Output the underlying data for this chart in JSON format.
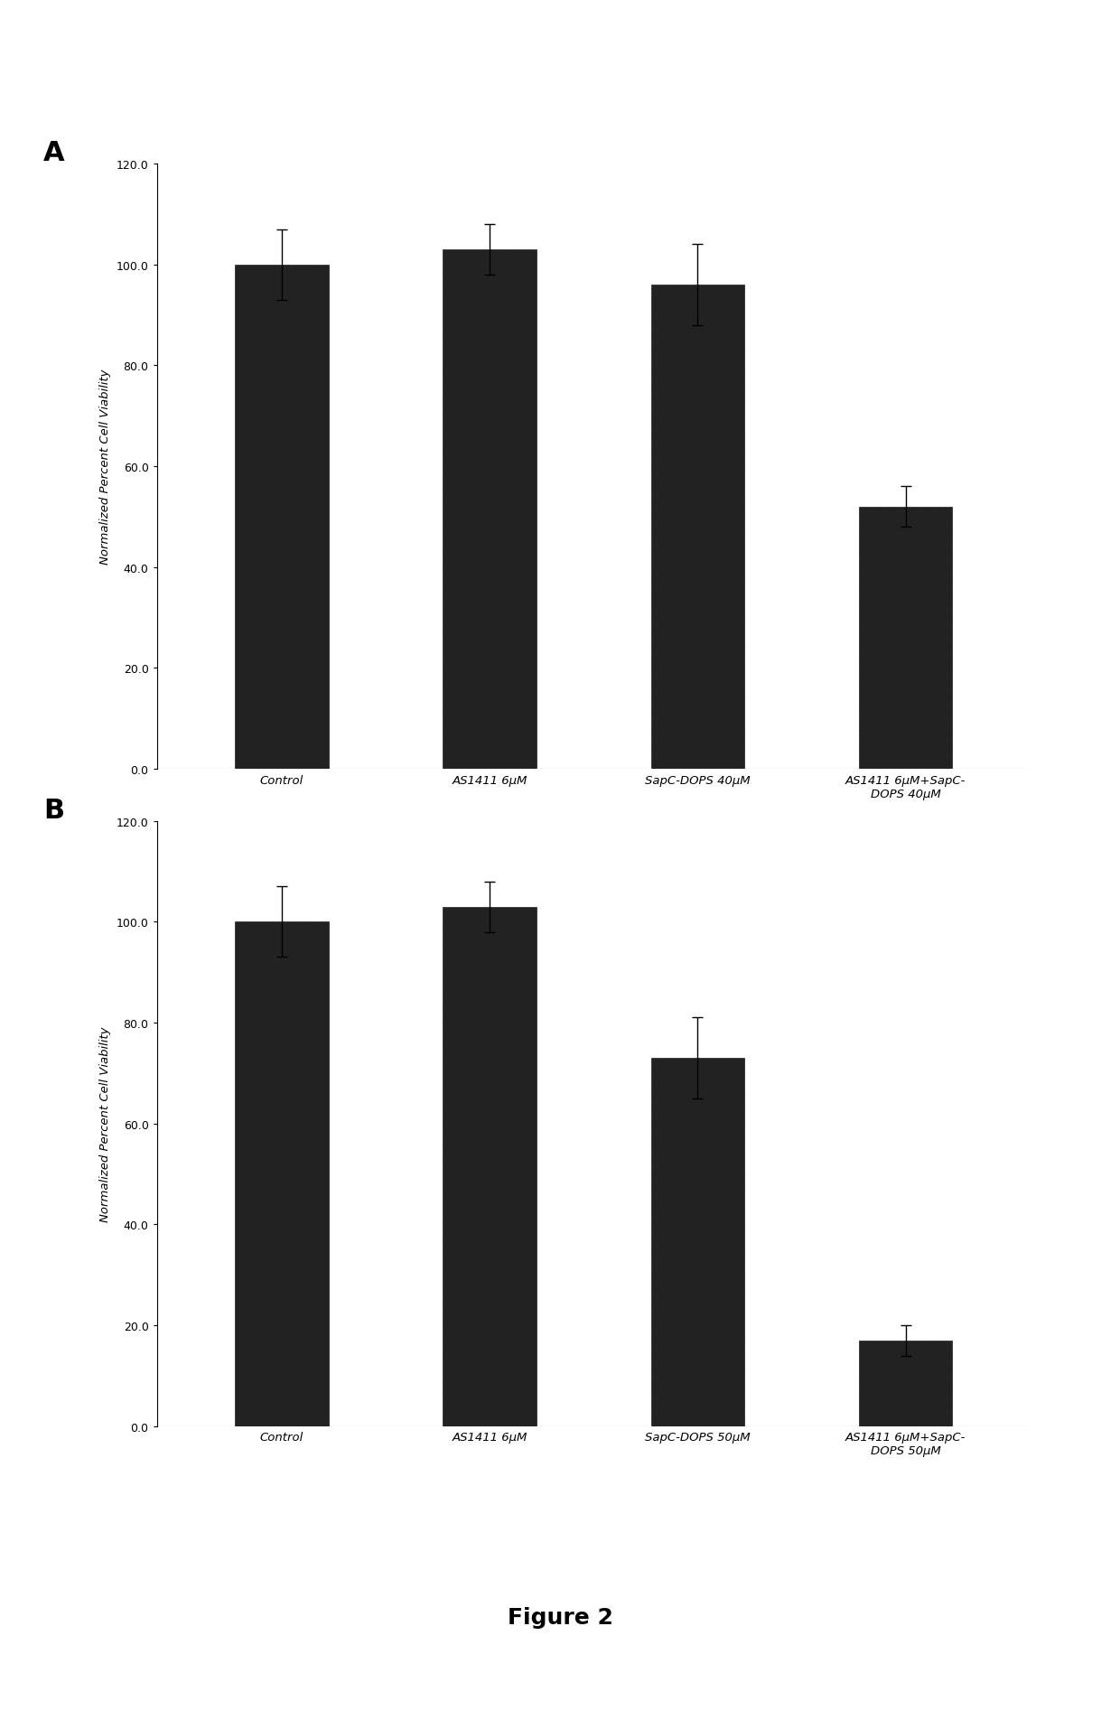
{
  "panel_A": {
    "categories": [
      "Control",
      "AS1411 6μM",
      "SapC-DOPS 40μM",
      "AS1411 6μM+SapC-\nDOPS 40μM"
    ],
    "values": [
      100.0,
      103.0,
      96.0,
      52.0
    ],
    "errors": [
      7.0,
      5.0,
      8.0,
      4.0
    ],
    "ylabel": "Normalized Percent Cell Viability",
    "ylim": [
      0,
      120
    ],
    "yticks": [
      0.0,
      20.0,
      40.0,
      60.0,
      80.0,
      100.0,
      120.0
    ],
    "panel_label": "A"
  },
  "panel_B": {
    "categories": [
      "Control",
      "AS1411 6μM",
      "SapC-DOPS 50μM",
      "AS1411 6μM+SapC-\nDOPS 50μM"
    ],
    "values": [
      100.0,
      103.0,
      73.0,
      17.0
    ],
    "errors": [
      7.0,
      5.0,
      8.0,
      3.0
    ],
    "ylabel": "Normalized Percent Cell Viability",
    "ylim": [
      0,
      120
    ],
    "yticks": [
      0.0,
      20.0,
      40.0,
      60.0,
      80.0,
      100.0,
      120.0
    ],
    "panel_label": "B"
  },
  "figure_label": "Figure 2",
  "bar_color": "#222222",
  "bar_hatch": "+++",
  "bar_edgecolor": "#222222",
  "hatch_color": "#ffffff",
  "background_color": "#ffffff",
  "bar_width": 0.45,
  "fig_width": 12.4,
  "fig_height": 19.15
}
